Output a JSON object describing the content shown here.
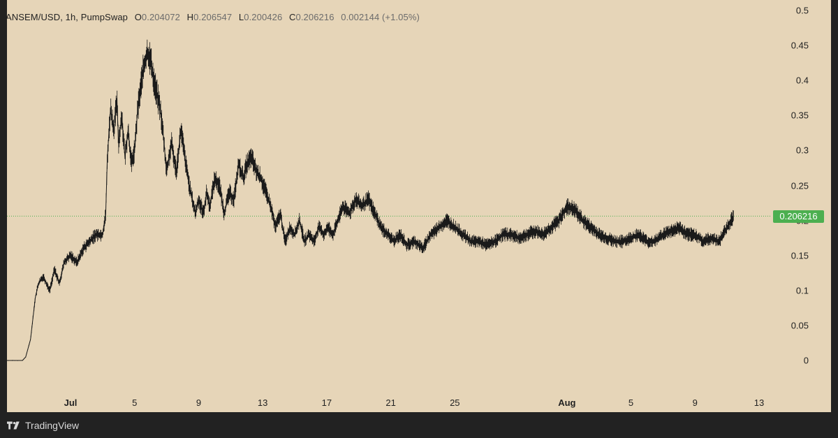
{
  "header": {
    "symbol": "ANSEM/USD, 1h, PumpSwap",
    "open_key": "O",
    "open": "0.204072",
    "high_key": "H",
    "high": "0.206547",
    "low_key": "L",
    "low": "0.200426",
    "close_key": "C",
    "close": "0.206216",
    "change": "0.002144 (+1.05%)"
  },
  "footer": {
    "brand": "TradingView"
  },
  "price_badge": "0.206216",
  "colors": {
    "background": "#e6d5b8",
    "candle": "#1a1a1a",
    "badge": "#4caf50",
    "price_line": "#4caf50"
  },
  "chart_data": {
    "type": "line",
    "description_of_series": "ANSEM/USD hourly close",
    "ylim": [
      0,
      0.5
    ],
    "y_ticks": [
      "0.5",
      "0.45",
      "0.4",
      "0.35",
      "0.3",
      "0.25",
      "0.2",
      "0.15",
      "0.1",
      "0.05",
      "0"
    ],
    "y_tick_values": [
      0.5,
      0.45,
      0.4,
      0.35,
      0.3,
      0.25,
      0.2,
      0.15,
      0.1,
      0.05,
      0
    ],
    "x_ticks": [
      {
        "label": "Jul",
        "day": 1,
        "bold": true
      },
      {
        "label": "5",
        "day": 5
      },
      {
        "label": "9",
        "day": 9
      },
      {
        "label": "13",
        "day": 13
      },
      {
        "label": "17",
        "day": 17
      },
      {
        "label": "21",
        "day": 21
      },
      {
        "label": "25",
        "day": 25
      },
      {
        "label": "Aug",
        "day": 32,
        "bold": true
      },
      {
        "label": "5",
        "day": 36
      },
      {
        "label": "9",
        "day": 40
      },
      {
        "label": "13",
        "day": 44
      }
    ],
    "xlim_days": [
      -3.0,
      47.0
    ],
    "x": [
      -3.0,
      -2.5,
      -2.0,
      -1.8,
      -1.5,
      -1.2,
      -1.0,
      -0.7,
      -0.3,
      0.0,
      0.3,
      0.6,
      1.0,
      1.4,
      1.8,
      2.2,
      2.6,
      3.0,
      3.2,
      3.3,
      3.5,
      3.7,
      3.9,
      4.0,
      4.2,
      4.4,
      4.6,
      4.8,
      5.0,
      5.2,
      5.5,
      5.8,
      6.0,
      6.2,
      6.4,
      6.6,
      6.8,
      7.0,
      7.3,
      7.6,
      7.9,
      8.2,
      8.5,
      8.8,
      9.0,
      9.3,
      9.5,
      9.7,
      10.0,
      10.3,
      10.6,
      10.9,
      11.2,
      11.5,
      11.8,
      12.0,
      12.3,
      12.6,
      12.9,
      13.2,
      13.5,
      13.8,
      14.1,
      14.4,
      14.7,
      15.0,
      15.3,
      15.6,
      15.9,
      16.2,
      16.5,
      16.8,
      17.1,
      17.4,
      17.7,
      18.0,
      18.4,
      18.8,
      19.2,
      19.6,
      20.0,
      20.4,
      20.8,
      21.2,
      21.6,
      22.0,
      22.5,
      23.0,
      23.5,
      24.0,
      24.5,
      25.0,
      25.5,
      26.0,
      26.5,
      27.0,
      27.5,
      28.0,
      28.5,
      29.0,
      29.5,
      30.0,
      30.5,
      31.0,
      31.5,
      32.0,
      32.5,
      33.0,
      33.5,
      34.0,
      34.5,
      35.0,
      35.5,
      36.0,
      36.5,
      37.0,
      37.5,
      38.0,
      38.5,
      39.0,
      39.5,
      40.0,
      40.5,
      41.0,
      41.5,
      42.0,
      42.4
    ],
    "values": [
      0.0,
      0.0,
      0.0,
      0.005,
      0.03,
      0.09,
      0.11,
      0.12,
      0.1,
      0.13,
      0.11,
      0.14,
      0.15,
      0.14,
      0.16,
      0.17,
      0.18,
      0.18,
      0.21,
      0.29,
      0.36,
      0.33,
      0.37,
      0.31,
      0.35,
      0.29,
      0.33,
      0.28,
      0.3,
      0.36,
      0.41,
      0.44,
      0.43,
      0.4,
      0.38,
      0.36,
      0.32,
      0.27,
      0.31,
      0.27,
      0.33,
      0.28,
      0.24,
      0.21,
      0.23,
      0.21,
      0.24,
      0.22,
      0.26,
      0.25,
      0.21,
      0.24,
      0.23,
      0.28,
      0.26,
      0.28,
      0.29,
      0.27,
      0.26,
      0.24,
      0.22,
      0.19,
      0.21,
      0.17,
      0.19,
      0.18,
      0.2,
      0.17,
      0.18,
      0.17,
      0.19,
      0.18,
      0.19,
      0.18,
      0.2,
      0.22,
      0.21,
      0.23,
      0.22,
      0.23,
      0.21,
      0.19,
      0.18,
      0.17,
      0.18,
      0.165,
      0.17,
      0.16,
      0.18,
      0.19,
      0.2,
      0.19,
      0.18,
      0.17,
      0.17,
      0.165,
      0.17,
      0.18,
      0.18,
      0.175,
      0.18,
      0.185,
      0.18,
      0.19,
      0.2,
      0.22,
      0.215,
      0.2,
      0.19,
      0.18,
      0.175,
      0.17,
      0.17,
      0.175,
      0.18,
      0.17,
      0.17,
      0.18,
      0.185,
      0.19,
      0.18,
      0.18,
      0.17,
      0.175,
      0.17,
      0.19,
      0.206
    ],
    "last_price": 0.206216
  }
}
